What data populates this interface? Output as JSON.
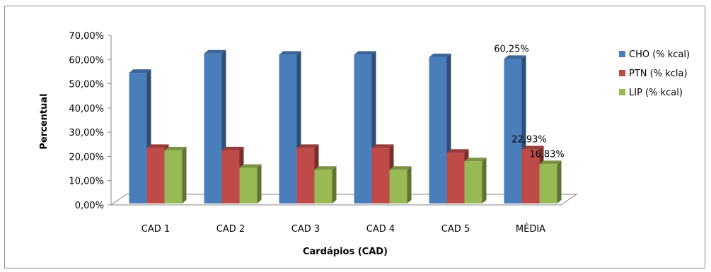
{
  "chart_data": {
    "type": "bar",
    "title": "",
    "xlabel": "Cardápios (CAD)",
    "ylabel": "Percentual",
    "categories": [
      "CAD 1",
      "CAD 2",
      "CAD 3",
      "CAD 4",
      "CAD 5",
      "MÉDIA"
    ],
    "series": [
      {
        "name": "CHO (% kcal)",
        "color": "#4a7ebb",
        "values": [
          54.5,
          62.5,
          62.0,
          62.0,
          61.0,
          60.25
        ]
      },
      {
        "name": "PTN (% kcla)",
        "color": "#be4b48",
        "values": [
          23.5,
          22.5,
          23.5,
          23.5,
          21.5,
          22.93
        ]
      },
      {
        "name": "LIP (% kcal)",
        "color": "#98b954",
        "values": [
          22.5,
          15.3,
          14.5,
          14.5,
          18.0,
          16.83
        ]
      }
    ],
    "yticks": [
      "0,00%",
      "10,00%",
      "20,00%",
      "30,00%",
      "40,00%",
      "50,00%",
      "60,00%",
      "70,00%"
    ],
    "ylim": [
      0,
      70
    ],
    "grid": false,
    "legend_position": "right",
    "data_labels": [
      {
        "series": 0,
        "category": 5,
        "text": "60,25%"
      },
      {
        "series": 1,
        "category": 5,
        "text": "22,93%"
      },
      {
        "series": 2,
        "category": 5,
        "text": "16,83%"
      }
    ]
  }
}
